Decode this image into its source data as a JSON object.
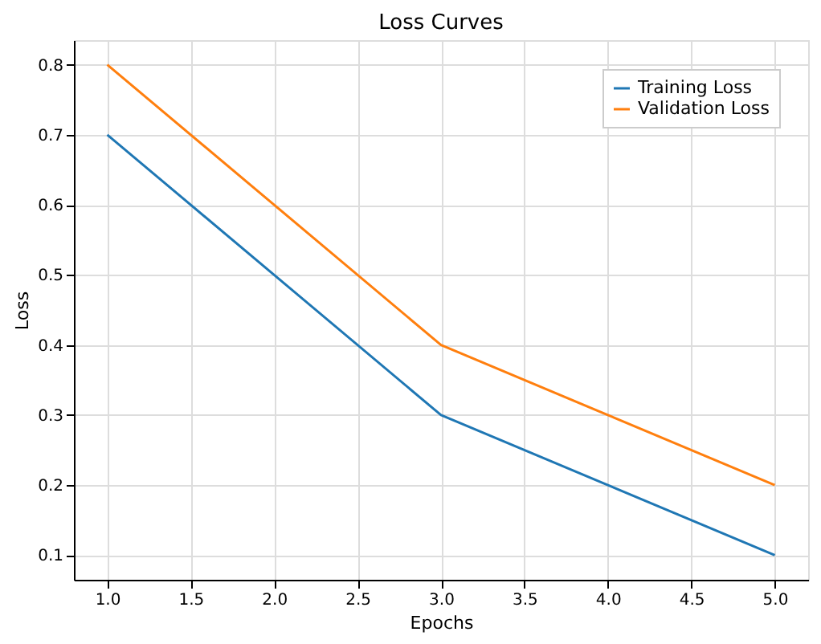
{
  "chart_data": {
    "type": "line",
    "title": "Loss Curves",
    "xlabel": "Epochs",
    "ylabel": "Loss",
    "x": [
      1,
      2,
      3,
      4,
      5
    ],
    "series": [
      {
        "name": "Training Loss",
        "color": "#1f77b4",
        "values": [
          0.7,
          0.5,
          0.3,
          0.2,
          0.1
        ]
      },
      {
        "name": "Validation Loss",
        "color": "#ff7f0e",
        "values": [
          0.8,
          0.6,
          0.4,
          0.3,
          0.2
        ]
      }
    ],
    "xlim": [
      0.8,
      5.2
    ],
    "xticks": [
      {
        "value": 1,
        "label": "1.0"
      },
      1.5,
      {
        "value": 2,
        "label": "2.0"
      },
      2.5,
      {
        "value": 3,
        "label": "3.0"
      },
      3.5,
      {
        "value": 4,
        "label": "4.0"
      },
      4.5,
      {
        "value": 5,
        "label": "5.0"
      }
    ],
    "ylim": [
      0.065,
      0.835
    ],
    "yticks": [
      0.1,
      0.2,
      0.3,
      0.4,
      0.5,
      0.6,
      0.7,
      0.8
    ],
    "grid": true,
    "legend": "top right",
    "marker": "none",
    "line_style": "solid"
  }
}
